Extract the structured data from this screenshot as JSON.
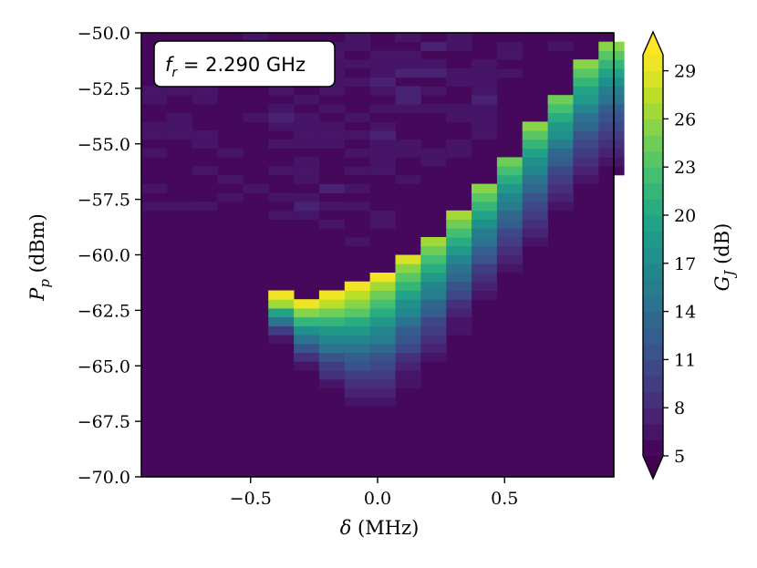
{
  "chart_data": {
    "type": "heatmap",
    "annotation": {
      "var": "f",
      "sub": "r",
      "value": " = 2.290 GHz"
    },
    "xlabel": {
      "sym": "δ",
      "unit": " (MHz)"
    },
    "ylabel": {
      "sym": "P",
      "sub": "p",
      "unit": " (dBm)"
    },
    "colorbar_label": {
      "sym": "G",
      "sub": "J",
      "unit": " (dB)"
    },
    "xlim": [
      -0.93,
      0.93
    ],
    "ylim": [
      -70.0,
      -50.0
    ],
    "clim": [
      5,
      30
    ],
    "colormap": "viridis",
    "colorbar_extend": "both",
    "x_ticks": [
      -0.5,
      0.0,
      0.5
    ],
    "x_tick_labels": [
      "−0.5",
      "0.0",
      "0.5"
    ],
    "y_ticks": [
      -50.0,
      -52.5,
      -55.0,
      -57.5,
      -60.0,
      -62.5,
      -65.0,
      -67.5,
      -70.0
    ],
    "y_tick_labels": [
      "−50.0",
      "−52.5",
      "−55.0",
      "−57.5",
      "−60.0",
      "−62.5",
      "−65.0",
      "−67.5",
      "−70.0"
    ],
    "cbar_ticks": [
      5,
      8,
      11,
      14,
      17,
      20,
      23,
      26,
      29
    ],
    "cbar_tick_labels": [
      "5",
      "8",
      "11",
      "14",
      "17",
      "20",
      "23",
      "26",
      "29"
    ],
    "x_bin_centers": [
      -0.4,
      -0.3,
      -0.2,
      -0.1,
      0.0,
      0.1,
      0.2,
      0.3,
      0.4,
      0.5,
      0.6,
      0.7,
      0.8,
      0.9
    ],
    "peak_power_dBm": [
      -62.0,
      -62.3,
      -62.0,
      -61.6,
      -61.2,
      -60.4,
      -59.6,
      -58.6,
      -57.4,
      -56.0,
      -54.6,
      -53.2,
      -51.8,
      -50.6
    ],
    "peak_gain_dB": [
      29,
      29,
      30,
      30,
      29,
      28,
      27,
      26,
      25,
      25,
      25,
      25,
      25,
      25
    ],
    "low_edge_dBm": [
      -63.8,
      -65.4,
      -66.6,
      -67.4,
      -67.8,
      -67.0,
      -66.0,
      -64.6,
      -63.2,
      -62.0,
      -60.8,
      -59.4,
      -58.0,
      -57.0
    ],
    "background_gain_dB": 5
  }
}
